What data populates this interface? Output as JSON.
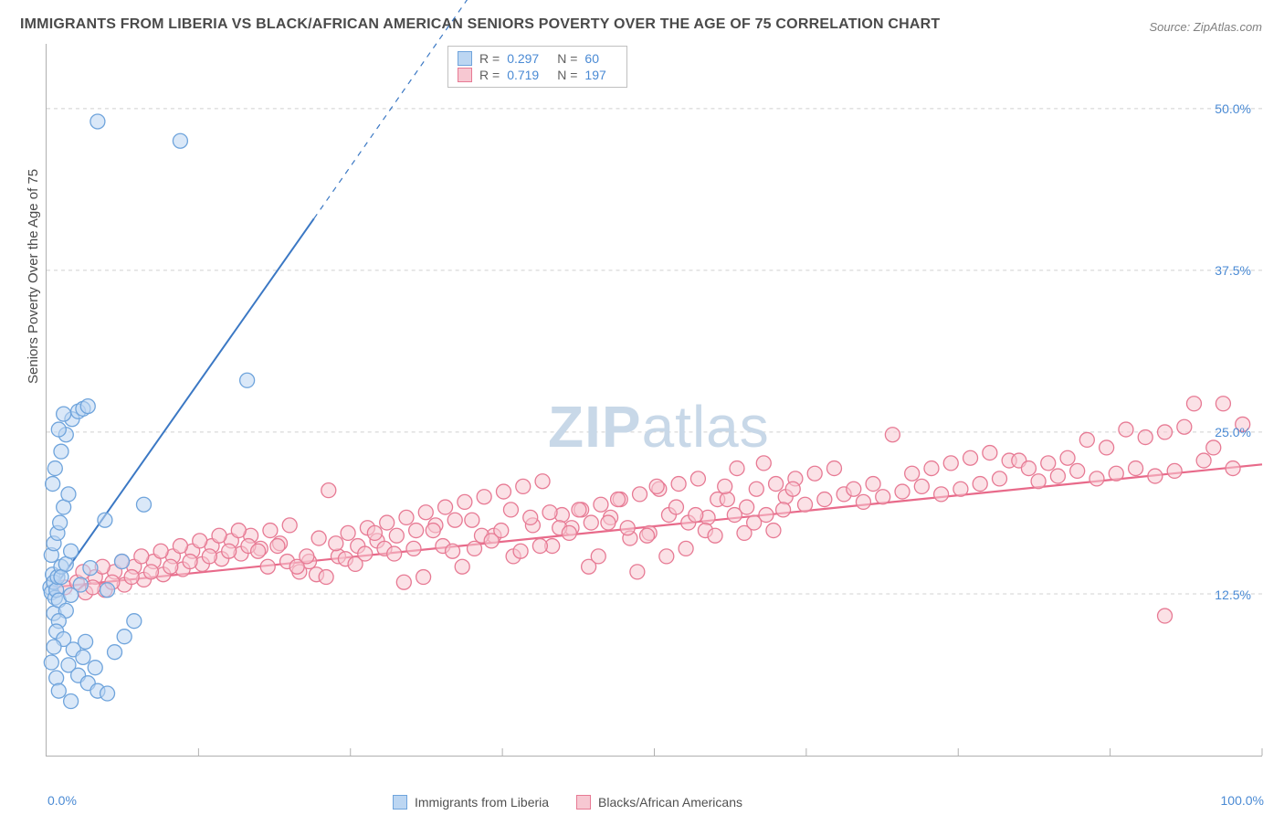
{
  "title": "IMMIGRANTS FROM LIBERIA VS BLACK/AFRICAN AMERICAN SENIORS POVERTY OVER THE AGE OF 75 CORRELATION CHART",
  "source": "Source: ZipAtlas.com",
  "ylabel": "Seniors Poverty Over the Age of 75",
  "watermark": {
    "zip": "ZIP",
    "atlas": "atlas"
  },
  "chart": {
    "type": "scatter",
    "xlim": [
      0,
      100
    ],
    "ylim": [
      0,
      55
    ],
    "background_color": "#ffffff",
    "grid_color": "#d0d0d0",
    "axis_color": "#b0b0b0",
    "yticks": [
      {
        "v": 12.5,
        "label": "12.5%"
      },
      {
        "v": 25.0,
        "label": "25.0%"
      },
      {
        "v": 37.5,
        "label": "37.5%"
      },
      {
        "v": 50.0,
        "label": "50.0%"
      }
    ],
    "xticks_label": {
      "min": "0.0%",
      "max": "100.0%"
    },
    "xticks_pos": [
      0,
      12.5,
      25,
      37.5,
      50,
      62.5,
      75,
      87.5,
      100
    ],
    "ytick_color": "#4a8ad4",
    "ytick_fontsize": 14,
    "marker_radius": 8,
    "marker_stroke_width": 1.3,
    "series": [
      {
        "name": "Immigrants from Liberia",
        "fill": "#bcd6f2",
        "stroke": "#6fa4dc",
        "fill_opacity": 0.55,
        "R": "0.297",
        "N": "60",
        "trend": {
          "x1": 0.5,
          "y1": 12.8,
          "x2": 22,
          "y2": 41.5,
          "dash_extend_x": 41,
          "dash_extend_y": 67,
          "color": "#3b78c4",
          "width": 2
        },
        "points": [
          [
            0.3,
            13.0
          ],
          [
            0.4,
            12.6
          ],
          [
            0.5,
            14.0
          ],
          [
            0.6,
            13.4
          ],
          [
            0.7,
            12.2
          ],
          [
            0.6,
            11.0
          ],
          [
            0.8,
            12.8
          ],
          [
            0.9,
            13.8
          ],
          [
            1.0,
            12.0
          ],
          [
            1.2,
            14.6
          ],
          [
            0.4,
            15.5
          ],
          [
            0.6,
            16.4
          ],
          [
            0.9,
            17.2
          ],
          [
            1.1,
            18.0
          ],
          [
            1.4,
            19.2
          ],
          [
            1.8,
            20.2
          ],
          [
            0.5,
            21.0
          ],
          [
            0.7,
            22.2
          ],
          [
            1.2,
            23.5
          ],
          [
            1.6,
            24.8
          ],
          [
            2.1,
            26.0
          ],
          [
            2.6,
            26.6
          ],
          [
            3.0,
            26.8
          ],
          [
            3.4,
            27.0
          ],
          [
            1.0,
            25.2
          ],
          [
            1.4,
            26.4
          ],
          [
            8.0,
            19.4
          ],
          [
            4.8,
            18.2
          ],
          [
            6.2,
            15.0
          ],
          [
            5.0,
            12.8
          ],
          [
            3.6,
            14.5
          ],
          [
            2.8,
            13.2
          ],
          [
            2.0,
            12.4
          ],
          [
            1.6,
            11.2
          ],
          [
            1.0,
            10.4
          ],
          [
            0.8,
            9.6
          ],
          [
            1.4,
            9.0
          ],
          [
            2.2,
            8.2
          ],
          [
            3.0,
            7.6
          ],
          [
            1.8,
            7.0
          ],
          [
            2.6,
            6.2
          ],
          [
            3.4,
            5.6
          ],
          [
            4.2,
            5.0
          ],
          [
            5.0,
            4.8
          ],
          [
            4.0,
            6.8
          ],
          [
            3.2,
            8.8
          ],
          [
            5.6,
            8.0
          ],
          [
            6.4,
            9.2
          ],
          [
            7.2,
            10.4
          ],
          [
            0.6,
            8.4
          ],
          [
            0.4,
            7.2
          ],
          [
            0.8,
            6.0
          ],
          [
            1.0,
            5.0
          ],
          [
            4.2,
            49.0
          ],
          [
            11.0,
            47.5
          ],
          [
            16.5,
            29.0
          ],
          [
            2.0,
            4.2
          ],
          [
            1.2,
            13.8
          ],
          [
            1.6,
            14.8
          ],
          [
            2.0,
            15.8
          ]
        ]
      },
      {
        "name": "Blacks/African Americans",
        "fill": "#f7c8d2",
        "stroke": "#e77a94",
        "fill_opacity": 0.55,
        "R": "0.719",
        "N": "197",
        "trend": {
          "x1": 0.5,
          "y1": 13.0,
          "x2": 100,
          "y2": 22.5,
          "color": "#e86a8a",
          "width": 2.2
        },
        "points": [
          [
            1.5,
            13.0
          ],
          [
            2.5,
            13.4
          ],
          [
            3.2,
            12.6
          ],
          [
            4.0,
            13.8
          ],
          [
            4.8,
            12.8
          ],
          [
            5.6,
            14.2
          ],
          [
            6.4,
            13.2
          ],
          [
            7.2,
            14.6
          ],
          [
            8.0,
            13.6
          ],
          [
            8.8,
            15.0
          ],
          [
            9.6,
            14.0
          ],
          [
            10.4,
            15.4
          ],
          [
            11.2,
            14.4
          ],
          [
            12.0,
            15.8
          ],
          [
            12.8,
            14.8
          ],
          [
            13.6,
            16.2
          ],
          [
            14.4,
            15.2
          ],
          [
            15.2,
            16.6
          ],
          [
            16.0,
            15.6
          ],
          [
            16.8,
            17.0
          ],
          [
            17.6,
            16.0
          ],
          [
            18.4,
            17.4
          ],
          [
            19.2,
            16.4
          ],
          [
            20.0,
            17.8
          ],
          [
            20.8,
            14.2
          ],
          [
            21.6,
            15.0
          ],
          [
            22.4,
            16.8
          ],
          [
            23.2,
            20.5
          ],
          [
            24.0,
            15.4
          ],
          [
            24.8,
            17.2
          ],
          [
            25.6,
            16.2
          ],
          [
            26.4,
            17.6
          ],
          [
            27.2,
            16.6
          ],
          [
            28.0,
            18.0
          ],
          [
            28.8,
            17.0
          ],
          [
            29.6,
            18.4
          ],
          [
            30.4,
            17.4
          ],
          [
            31.2,
            18.8
          ],
          [
            32.0,
            17.8
          ],
          [
            32.8,
            19.2
          ],
          [
            33.6,
            18.2
          ],
          [
            34.4,
            19.6
          ],
          [
            35.2,
            16.0
          ],
          [
            36.0,
            20.0
          ],
          [
            36.8,
            17.0
          ],
          [
            37.6,
            20.4
          ],
          [
            38.4,
            15.4
          ],
          [
            39.2,
            20.8
          ],
          [
            40.0,
            17.8
          ],
          [
            40.8,
            21.2
          ],
          [
            41.6,
            16.2
          ],
          [
            42.4,
            18.6
          ],
          [
            43.2,
            17.6
          ],
          [
            44.0,
            19.0
          ],
          [
            44.8,
            18.0
          ],
          [
            45.6,
            19.4
          ],
          [
            46.4,
            18.4
          ],
          [
            47.2,
            19.8
          ],
          [
            48.0,
            16.8
          ],
          [
            48.8,
            20.2
          ],
          [
            49.6,
            17.2
          ],
          [
            50.4,
            20.6
          ],
          [
            51.2,
            18.6
          ],
          [
            52.0,
            21.0
          ],
          [
            52.8,
            18.0
          ],
          [
            53.6,
            21.4
          ],
          [
            54.4,
            18.4
          ],
          [
            55.2,
            19.8
          ],
          [
            56.0,
            19.8
          ],
          [
            56.8,
            22.2
          ],
          [
            57.6,
            19.2
          ],
          [
            58.4,
            20.6
          ],
          [
            59.2,
            18.6
          ],
          [
            60.0,
            21.0
          ],
          [
            60.8,
            20.0
          ],
          [
            61.6,
            21.4
          ],
          [
            62.4,
            19.4
          ],
          [
            63.2,
            21.8
          ],
          [
            64.0,
            19.8
          ],
          [
            64.8,
            22.2
          ],
          [
            65.6,
            20.2
          ],
          [
            66.4,
            20.6
          ],
          [
            67.2,
            19.6
          ],
          [
            68.0,
            21.0
          ],
          [
            68.8,
            20.0
          ],
          [
            69.6,
            24.8
          ],
          [
            70.4,
            20.4
          ],
          [
            71.2,
            21.8
          ],
          [
            72.0,
            20.8
          ],
          [
            72.8,
            22.2
          ],
          [
            73.6,
            20.2
          ],
          [
            74.4,
            22.6
          ],
          [
            75.2,
            20.6
          ],
          [
            76.0,
            23.0
          ],
          [
            76.8,
            21.0
          ],
          [
            77.6,
            23.4
          ],
          [
            78.4,
            21.4
          ],
          [
            79.2,
            22.8
          ],
          [
            80.0,
            22.8
          ],
          [
            80.8,
            22.2
          ],
          [
            81.6,
            21.2
          ],
          [
            82.4,
            22.6
          ],
          [
            83.2,
            21.6
          ],
          [
            84.0,
            23.0
          ],
          [
            84.8,
            22.0
          ],
          [
            85.6,
            24.4
          ],
          [
            86.4,
            21.4
          ],
          [
            87.2,
            23.8
          ],
          [
            88.0,
            21.8
          ],
          [
            88.8,
            25.2
          ],
          [
            89.6,
            22.2
          ],
          [
            90.4,
            24.6
          ],
          [
            91.2,
            21.6
          ],
          [
            92.0,
            25.0
          ],
          [
            92.8,
            22.0
          ],
          [
            93.6,
            25.4
          ],
          [
            94.4,
            27.2
          ],
          [
            95.2,
            22.8
          ],
          [
            96.0,
            23.8
          ],
          [
            96.8,
            27.2
          ],
          [
            97.6,
            22.2
          ],
          [
            98.4,
            25.6
          ],
          [
            92.0,
            10.8
          ],
          [
            3.0,
            14.2
          ],
          [
            3.8,
            13.0
          ],
          [
            4.6,
            14.6
          ],
          [
            5.4,
            13.4
          ],
          [
            6.2,
            15.0
          ],
          [
            7.0,
            13.8
          ],
          [
            7.8,
            15.4
          ],
          [
            8.6,
            14.2
          ],
          [
            9.4,
            15.8
          ],
          [
            10.2,
            14.6
          ],
          [
            11.0,
            16.2
          ],
          [
            11.8,
            15.0
          ],
          [
            12.6,
            16.6
          ],
          [
            13.4,
            15.4
          ],
          [
            14.2,
            17.0
          ],
          [
            15.0,
            15.8
          ],
          [
            15.8,
            17.4
          ],
          [
            16.6,
            16.2
          ],
          [
            17.4,
            15.8
          ],
          [
            18.2,
            14.6
          ],
          [
            19.0,
            16.2
          ],
          [
            19.8,
            15.0
          ],
          [
            20.6,
            14.6
          ],
          [
            21.4,
            15.4
          ],
          [
            22.2,
            14.0
          ],
          [
            23.0,
            13.8
          ],
          [
            23.8,
            16.4
          ],
          [
            24.6,
            15.2
          ],
          [
            25.4,
            14.8
          ],
          [
            26.2,
            15.6
          ],
          [
            27.0,
            17.2
          ],
          [
            27.8,
            16.0
          ],
          [
            28.6,
            15.6
          ],
          [
            29.4,
            13.4
          ],
          [
            30.2,
            16.0
          ],
          [
            31.0,
            13.8
          ],
          [
            31.8,
            17.4
          ],
          [
            32.6,
            16.2
          ],
          [
            33.4,
            15.8
          ],
          [
            34.2,
            14.6
          ],
          [
            35.0,
            18.2
          ],
          [
            35.8,
            17.0
          ],
          [
            36.6,
            16.6
          ],
          [
            37.4,
            17.4
          ],
          [
            38.2,
            19.0
          ],
          [
            39.0,
            15.8
          ],
          [
            39.8,
            18.4
          ],
          [
            40.6,
            16.2
          ],
          [
            41.4,
            18.8
          ],
          [
            42.2,
            17.6
          ],
          [
            43.0,
            17.2
          ],
          [
            43.8,
            19.0
          ],
          [
            44.6,
            14.6
          ],
          [
            45.4,
            15.4
          ],
          [
            46.2,
            18.0
          ],
          [
            47.0,
            19.8
          ],
          [
            47.8,
            17.6
          ],
          [
            48.6,
            14.2
          ],
          [
            49.4,
            17.0
          ],
          [
            50.2,
            20.8
          ],
          [
            51.0,
            15.4
          ],
          [
            51.8,
            19.2
          ],
          [
            52.6,
            16.0
          ],
          [
            53.4,
            18.6
          ],
          [
            54.2,
            17.4
          ],
          [
            55.0,
            17.0
          ],
          [
            55.8,
            20.8
          ],
          [
            56.6,
            18.6
          ],
          [
            57.4,
            17.2
          ],
          [
            58.2,
            18.0
          ],
          [
            59.0,
            22.6
          ],
          [
            59.8,
            17.4
          ],
          [
            60.6,
            19.0
          ],
          [
            61.4,
            20.6
          ]
        ]
      }
    ]
  },
  "legend_bottom": [
    {
      "label": "Immigrants from Liberia",
      "fill": "#bcd6f2",
      "stroke": "#6fa4dc"
    },
    {
      "label": "Blacks/African Americans",
      "fill": "#f7c8d2",
      "stroke": "#e77a94"
    }
  ]
}
